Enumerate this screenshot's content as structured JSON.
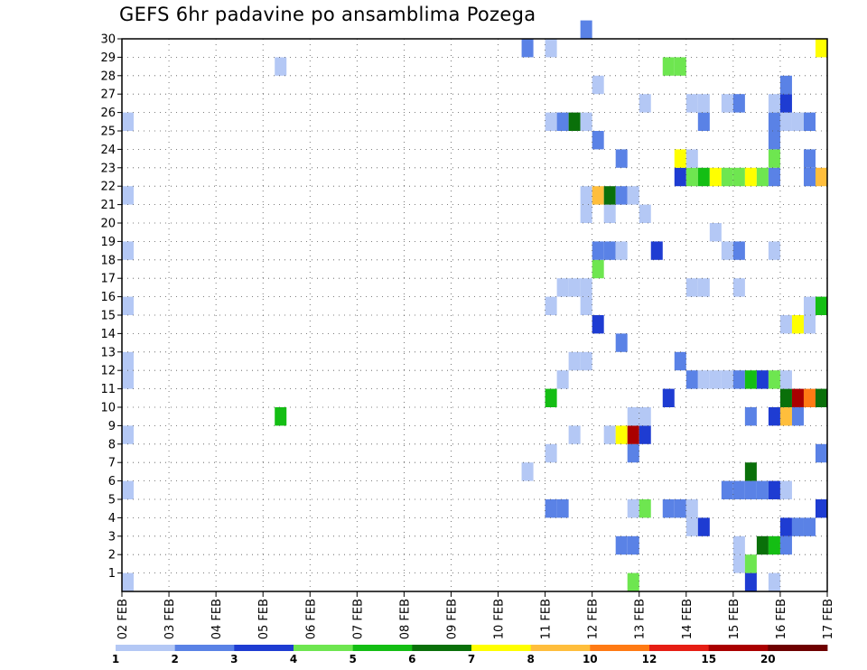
{
  "chart_data": {
    "type": "heatmap",
    "title": "GEFS 6hr padavine po ansamblima Pozega",
    "x_tick_labels": [
      "02 FEB",
      "03 FEB",
      "04 FEB",
      "05 FEB",
      "06 FEB",
      "07 FEB",
      "08 FEB",
      "09 FEB",
      "10 FEB",
      "11 FEB",
      "12 FEB",
      "13 FEB",
      "14 FEB",
      "15 FEB",
      "16 FEB",
      "17 FEB"
    ],
    "y_tick_labels": [
      "1",
      "2",
      "3",
      "4",
      "5",
      "6",
      "7",
      "8",
      "9",
      "10",
      "11",
      "12",
      "13",
      "14",
      "15",
      "16",
      "17",
      "18",
      "19",
      "20",
      "21",
      "22",
      "23",
      "24",
      "25",
      "26",
      "27",
      "28",
      "29",
      "30"
    ],
    "x_unit": "6-hour steps from 02 FEB",
    "x_range": [
      0,
      60
    ],
    "y_range": [
      0,
      30
    ],
    "grid": "dotted",
    "legend_position": "bottom",
    "legend_labels": [
      "1",
      "2",
      "3",
      "4",
      "5",
      "6",
      "7",
      "8",
      "10",
      "12",
      "15",
      "20"
    ],
    "colors": [
      "#b4c8f5",
      "#5a82e6",
      "#1e3cd2",
      "#6ee650",
      "#14be14",
      "#0a700a",
      "#ffff00",
      "#ffbe3c",
      "#ff7a14",
      "#e61e14",
      "#aa0000",
      "#6e0000"
    ],
    "levels_note": "c = color class index, 0 = first color (1-2 mm)",
    "cells": [
      {
        "x": 0,
        "y": 0,
        "c": 0
      },
      {
        "x": 0,
        "y": 5,
        "c": 0
      },
      {
        "x": 0,
        "y": 8,
        "c": 0
      },
      {
        "x": 0,
        "y": 11,
        "c": 0
      },
      {
        "x": 0,
        "y": 12,
        "c": 0
      },
      {
        "x": 0,
        "y": 15,
        "c": 0
      },
      {
        "x": 0,
        "y": 18,
        "c": 0
      },
      {
        "x": 0,
        "y": 21,
        "c": 0
      },
      {
        "x": 0,
        "y": 25,
        "c": 0
      },
      {
        "x": 13,
        "y": 9,
        "c": 4
      },
      {
        "x": 13,
        "y": 28,
        "c": 0
      },
      {
        "x": 34,
        "y": 6,
        "c": 0
      },
      {
        "x": 34,
        "y": 29,
        "c": 1
      },
      {
        "x": 36,
        "y": 4,
        "c": 1
      },
      {
        "x": 36,
        "y": 7,
        "c": 0
      },
      {
        "x": 36,
        "y": 10,
        "c": 4
      },
      {
        "x": 36,
        "y": 15,
        "c": 0
      },
      {
        "x": 36,
        "y": 25,
        "c": 0
      },
      {
        "x": 36,
        "y": 29,
        "c": 0
      },
      {
        "x": 37,
        "y": 4,
        "c": 1
      },
      {
        "x": 37,
        "y": 11,
        "c": 0
      },
      {
        "x": 37,
        "y": 16,
        "c": 0
      },
      {
        "x": 37,
        "y": 25,
        "c": 1
      },
      {
        "x": 38,
        "y": 8,
        "c": 0
      },
      {
        "x": 38,
        "y": 12,
        "c": 0
      },
      {
        "x": 38,
        "y": 16,
        "c": 0
      },
      {
        "x": 38,
        "y": 25,
        "c": 5
      },
      {
        "x": 39,
        "y": 12,
        "c": 0
      },
      {
        "x": 39,
        "y": 15,
        "c": 0
      },
      {
        "x": 39,
        "y": 16,
        "c": 0
      },
      {
        "x": 39,
        "y": 20,
        "c": 0
      },
      {
        "x": 39,
        "y": 21,
        "c": 0
      },
      {
        "x": 39,
        "y": 25,
        "c": 0
      },
      {
        "x": 39,
        "y": 30,
        "c": 1
      },
      {
        "x": 40,
        "y": 14,
        "c": 2
      },
      {
        "x": 40,
        "y": 17,
        "c": 3
      },
      {
        "x": 40,
        "y": 18,
        "c": 1
      },
      {
        "x": 40,
        "y": 21,
        "c": 7
      },
      {
        "x": 40,
        "y": 24,
        "c": 1
      },
      {
        "x": 40,
        "y": 27,
        "c": 0
      },
      {
        "x": 41,
        "y": 8,
        "c": 0
      },
      {
        "x": 41,
        "y": 18,
        "c": 1
      },
      {
        "x": 41,
        "y": 20,
        "c": 0
      },
      {
        "x": 41,
        "y": 21,
        "c": 5
      },
      {
        "x": 42,
        "y": 2,
        "c": 1
      },
      {
        "x": 42,
        "y": 8,
        "c": 6
      },
      {
        "x": 42,
        "y": 13,
        "c": 1
      },
      {
        "x": 42,
        "y": 18,
        "c": 0
      },
      {
        "x": 42,
        "y": 21,
        "c": 1
      },
      {
        "x": 42,
        "y": 23,
        "c": 1
      },
      {
        "x": 43,
        "y": 0,
        "c": 3
      },
      {
        "x": 43,
        "y": 2,
        "c": 1
      },
      {
        "x": 43,
        "y": 4,
        "c": 0
      },
      {
        "x": 43,
        "y": 7,
        "c": 1
      },
      {
        "x": 43,
        "y": 8,
        "c": 10
      },
      {
        "x": 43,
        "y": 9,
        "c": 0
      },
      {
        "x": 43,
        "y": 21,
        "c": 0
      },
      {
        "x": 44,
        "y": 4,
        "c": 3
      },
      {
        "x": 44,
        "y": 8,
        "c": 2
      },
      {
        "x": 44,
        "y": 9,
        "c": 0
      },
      {
        "x": 44,
        "y": 20,
        "c": 0
      },
      {
        "x": 44,
        "y": 26,
        "c": 0
      },
      {
        "x": 45,
        "y": 18,
        "c": 2
      },
      {
        "x": 46,
        "y": 4,
        "c": 1
      },
      {
        "x": 46,
        "y": 10,
        "c": 2
      },
      {
        "x": 46,
        "y": 28,
        "c": 3
      },
      {
        "x": 47,
        "y": 4,
        "c": 1
      },
      {
        "x": 47,
        "y": 12,
        "c": 1
      },
      {
        "x": 47,
        "y": 22,
        "c": 2
      },
      {
        "x": 47,
        "y": 23,
        "c": 6
      },
      {
        "x": 47,
        "y": 28,
        "c": 3
      },
      {
        "x": 48,
        "y": 3,
        "c": 0
      },
      {
        "x": 48,
        "y": 4,
        "c": 0
      },
      {
        "x": 48,
        "y": 11,
        "c": 1
      },
      {
        "x": 48,
        "y": 16,
        "c": 0
      },
      {
        "x": 48,
        "y": 22,
        "c": 3
      },
      {
        "x": 48,
        "y": 23,
        "c": 0
      },
      {
        "x": 48,
        "y": 26,
        "c": 0
      },
      {
        "x": 49,
        "y": 3,
        "c": 2
      },
      {
        "x": 49,
        "y": 11,
        "c": 0
      },
      {
        "x": 49,
        "y": 16,
        "c": 0
      },
      {
        "x": 49,
        "y": 22,
        "c": 4
      },
      {
        "x": 49,
        "y": 25,
        "c": 1
      },
      {
        "x": 49,
        "y": 26,
        "c": 0
      },
      {
        "x": 50,
        "y": 11,
        "c": 0
      },
      {
        "x": 50,
        "y": 19,
        "c": 0
      },
      {
        "x": 50,
        "y": 22,
        "c": 6
      },
      {
        "x": 51,
        "y": 5,
        "c": 1
      },
      {
        "x": 51,
        "y": 11,
        "c": 0
      },
      {
        "x": 51,
        "y": 18,
        "c": 0
      },
      {
        "x": 51,
        "y": 22,
        "c": 3
      },
      {
        "x": 51,
        "y": 26,
        "c": 0
      },
      {
        "x": 52,
        "y": 1,
        "c": 0
      },
      {
        "x": 52,
        "y": 2,
        "c": 0
      },
      {
        "x": 52,
        "y": 5,
        "c": 1
      },
      {
        "x": 52,
        "y": 11,
        "c": 1
      },
      {
        "x": 52,
        "y": 16,
        "c": 0
      },
      {
        "x": 52,
        "y": 18,
        "c": 1
      },
      {
        "x": 52,
        "y": 22,
        "c": 3
      },
      {
        "x": 52,
        "y": 26,
        "c": 1
      },
      {
        "x": 53,
        "y": 0,
        "c": 2
      },
      {
        "x": 53,
        "y": 1,
        "c": 3
      },
      {
        "x": 53,
        "y": 5,
        "c": 1
      },
      {
        "x": 53,
        "y": 6,
        "c": 5
      },
      {
        "x": 53,
        "y": 9,
        "c": 1
      },
      {
        "x": 53,
        "y": 11,
        "c": 4
      },
      {
        "x": 53,
        "y": 22,
        "c": 6
      },
      {
        "x": 54,
        "y": 2,
        "c": 5
      },
      {
        "x": 54,
        "y": 5,
        "c": 1
      },
      {
        "x": 54,
        "y": 11,
        "c": 2
      },
      {
        "x": 54,
        "y": 22,
        "c": 3
      },
      {
        "x": 55,
        "y": 0,
        "c": 0
      },
      {
        "x": 55,
        "y": 2,
        "c": 4
      },
      {
        "x": 55,
        "y": 5,
        "c": 2
      },
      {
        "x": 55,
        "y": 9,
        "c": 2
      },
      {
        "x": 55,
        "y": 11,
        "c": 3
      },
      {
        "x": 55,
        "y": 18,
        "c": 0
      },
      {
        "x": 55,
        "y": 22,
        "c": 1
      },
      {
        "x": 55,
        "y": 23,
        "c": 3
      },
      {
        "x": 55,
        "y": 24,
        "c": 1
      },
      {
        "x": 55,
        "y": 25,
        "c": 1
      },
      {
        "x": 55,
        "y": 26,
        "c": 0
      },
      {
        "x": 56,
        "y": 2,
        "c": 1
      },
      {
        "x": 56,
        "y": 3,
        "c": 2
      },
      {
        "x": 56,
        "y": 5,
        "c": 0
      },
      {
        "x": 56,
        "y": 9,
        "c": 7
      },
      {
        "x": 56,
        "y": 10,
        "c": 5
      },
      {
        "x": 56,
        "y": 11,
        "c": 0
      },
      {
        "x": 56,
        "y": 14,
        "c": 0
      },
      {
        "x": 56,
        "y": 25,
        "c": 0
      },
      {
        "x": 56,
        "y": 26,
        "c": 2
      },
      {
        "x": 56,
        "y": 27,
        "c": 1
      },
      {
        "x": 57,
        "y": 3,
        "c": 1
      },
      {
        "x": 57,
        "y": 9,
        "c": 1
      },
      {
        "x": 57,
        "y": 10,
        "c": 10
      },
      {
        "x": 57,
        "y": 14,
        "c": 6
      },
      {
        "x": 57,
        "y": 25,
        "c": 0
      },
      {
        "x": 58,
        "y": 3,
        "c": 1
      },
      {
        "x": 58,
        "y": 10,
        "c": 8
      },
      {
        "x": 58,
        "y": 14,
        "c": 0
      },
      {
        "x": 58,
        "y": 15,
        "c": 0
      },
      {
        "x": 58,
        "y": 22,
        "c": 1
      },
      {
        "x": 58,
        "y": 23,
        "c": 1
      },
      {
        "x": 58,
        "y": 25,
        "c": 1
      },
      {
        "x": 59,
        "y": 4,
        "c": 2
      },
      {
        "x": 59,
        "y": 7,
        "c": 1
      },
      {
        "x": 59,
        "y": 10,
        "c": 5
      },
      {
        "x": 59,
        "y": 15,
        "c": 4
      },
      {
        "x": 59,
        "y": 22,
        "c": 7
      },
      {
        "x": 59,
        "y": 29,
        "c": 6
      }
    ]
  }
}
